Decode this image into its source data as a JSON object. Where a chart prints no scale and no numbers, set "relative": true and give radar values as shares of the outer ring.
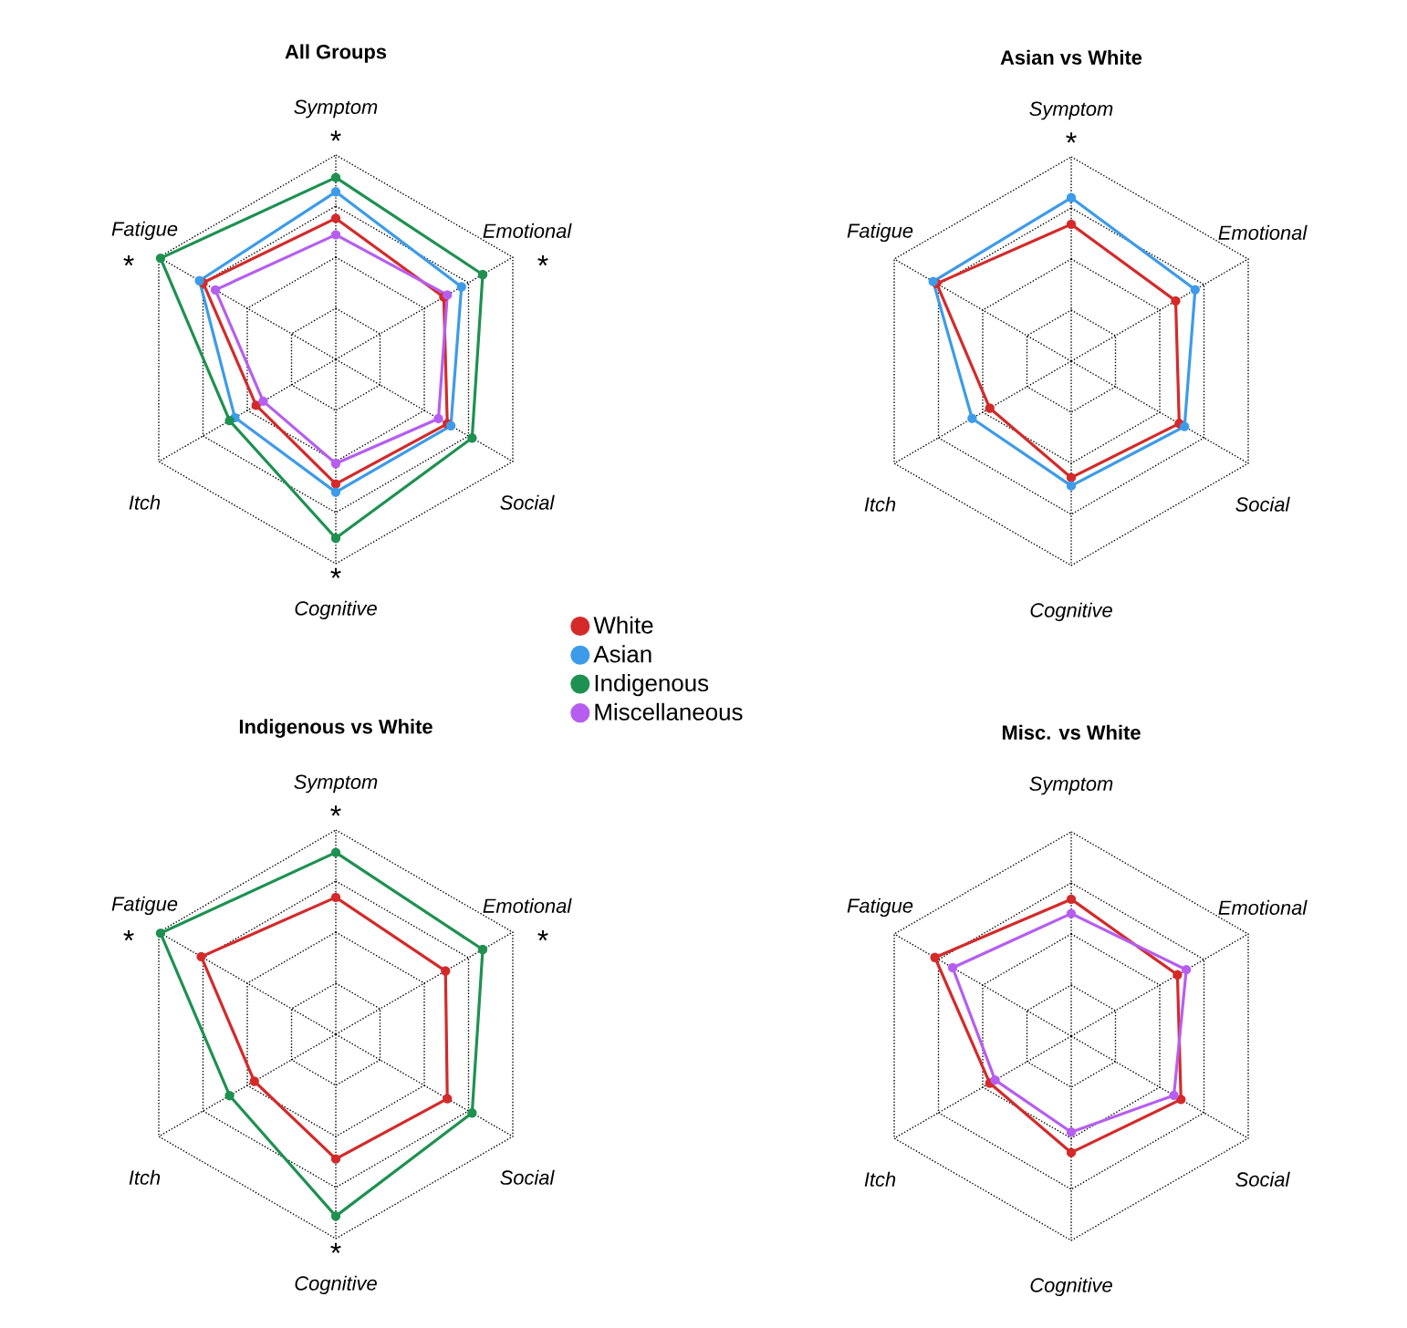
{
  "chart_data": [
    {
      "type": "radar",
      "title": "All Groups",
      "relative": true,
      "grid": true,
      "legend": "bottom right",
      "marker": "circle",
      "categories": [
        "Symptom",
        "Emotional",
        "Social",
        "Cognitive",
        "Itch",
        "Fatigue"
      ],
      "series": [
        {
          "name": "White",
          "color": "#d42a2a",
          "values": [
            0.69,
            0.61,
            0.63,
            0.61,
            0.45,
            0.75
          ]
        },
        {
          "name": "Asian",
          "color": "#3d9be9",
          "values": [
            0.82,
            0.71,
            0.65,
            0.65,
            0.57,
            0.77
          ]
        },
        {
          "name": "Indigenous",
          "color": "#1e9150",
          "values": [
            0.89,
            0.83,
            0.77,
            0.875,
            0.6,
            0.99
          ]
        },
        {
          "name": "Miscellaneous",
          "color": "#b65ef0",
          "values": [
            0.61,
            0.63,
            0.58,
            0.51,
            0.41,
            0.68
          ]
        }
      ],
      "annotations": [
        {
          "text": "*",
          "x": "Symptom"
        },
        {
          "text": "*",
          "x": "Emotional"
        },
        {
          "text": "*",
          "x": "Cognitive"
        },
        {
          "text": "*",
          "x": "Fatigue"
        }
      ]
    },
    {
      "type": "radar",
      "title": "Asian vs White",
      "relative": true,
      "grid": true,
      "marker": "circle",
      "categories": [
        "Symptom",
        "Emotional",
        "Social",
        "Cognitive",
        "Itch",
        "Fatigue"
      ],
      "series": [
        {
          "color": "#d42a2a",
          "values": [
            0.67,
            0.59,
            0.61,
            0.57,
            0.46,
            0.76
          ]
        },
        {
          "color": "#3d9be9",
          "values": [
            0.8,
            0.7,
            0.64,
            0.61,
            0.56,
            0.78
          ]
        }
      ],
      "annotations": [
        {
          "text": "*",
          "x": "Symptom"
        }
      ]
    },
    {
      "type": "radar",
      "title": "Indigenous vs White",
      "relative": true,
      "grid": true,
      "marker": "circle",
      "categories": [
        "Symptom",
        "Emotional",
        "Social",
        "Cognitive",
        "Itch",
        "Fatigue"
      ],
      "series": [
        {
          "color": "#d42a2a",
          "values": [
            0.67,
            0.62,
            0.63,
            0.61,
            0.46,
            0.76
          ]
        },
        {
          "color": "#1e9150",
          "values": [
            0.89,
            0.83,
            0.77,
            0.89,
            0.6,
            0.99
          ]
        }
      ],
      "annotations": [
        {
          "text": "*",
          "x": "Symptom"
        },
        {
          "text": "*",
          "x": "Emotional"
        },
        {
          "text": "*",
          "x": "Cognitive"
        },
        {
          "text": "*",
          "x": "Fatigue"
        }
      ]
    },
    {
      "type": "radar",
      "title": "Misc. vs White",
      "relative": true,
      "grid": true,
      "marker": "circle",
      "categories": [
        "Symptom",
        "Emotional",
        "Social",
        "Cognitive",
        "Itch",
        "Fatigue"
      ],
      "series": [
        {
          "color": "#d42a2a",
          "values": [
            0.67,
            0.6,
            0.62,
            0.57,
            0.46,
            0.77
          ]
        },
        {
          "color": "#b65ef0",
          "values": [
            0.6,
            0.65,
            0.58,
            0.47,
            0.43,
            0.67
          ]
        }
      ]
    }
  ]
}
